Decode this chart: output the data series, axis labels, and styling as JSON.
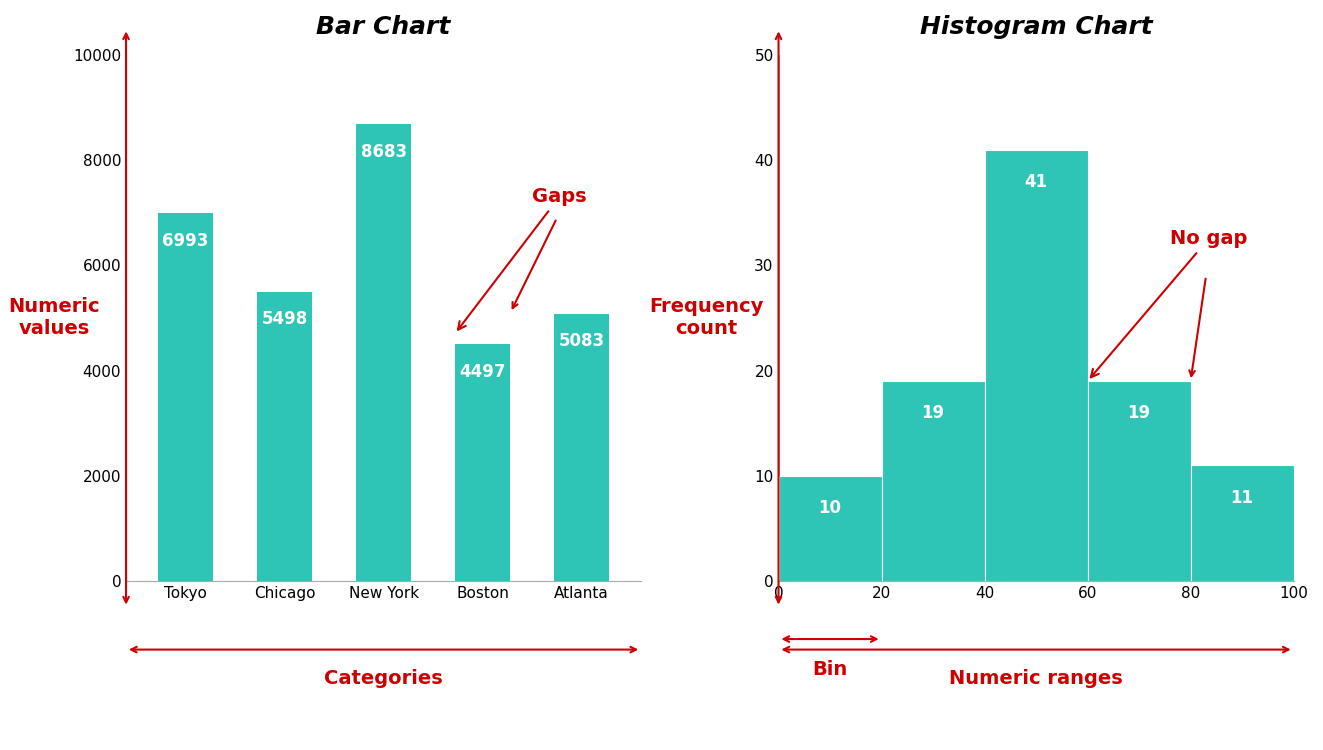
{
  "bar_categories": [
    "Tokyo",
    "Chicago",
    "New York",
    "Boston",
    "Atlanta"
  ],
  "bar_values": [
    6993,
    5498,
    8683,
    4497,
    5083
  ],
  "bar_color": "#2EC4B6",
  "bar_title": "Bar Chart",
  "bar_ylabel_text": "Numeric\nvalues",
  "bar_xlabel_text": "Categories",
  "bar_ylim": [
    0,
    10000
  ],
  "bar_yticks": [
    0,
    2000,
    4000,
    6000,
    8000,
    10000
  ],
  "hist_bins": [
    0,
    20,
    40,
    60,
    80,
    100
  ],
  "hist_values": [
    10,
    19,
    41,
    19,
    11
  ],
  "hist_color": "#2EC4B6",
  "hist_title": "Histogram Chart",
  "hist_ylabel_text": "Frequency\ncount",
  "hist_xlabel_text": "Numeric ranges",
  "hist_ylim": [
    0,
    50
  ],
  "hist_yticks": [
    0,
    10,
    20,
    30,
    40,
    50
  ],
  "annotation_color": "#CC0000",
  "label_color": "#FFFFFF",
  "title_fontsize": 18,
  "axis_label_fontsize": 14,
  "bar_label_fontsize": 12,
  "tick_fontsize": 11,
  "annotation_fontsize": 14,
  "gaps_annotation": "Gaps",
  "nogap_annotation": "No gap",
  "bin_annotation": "Bin"
}
